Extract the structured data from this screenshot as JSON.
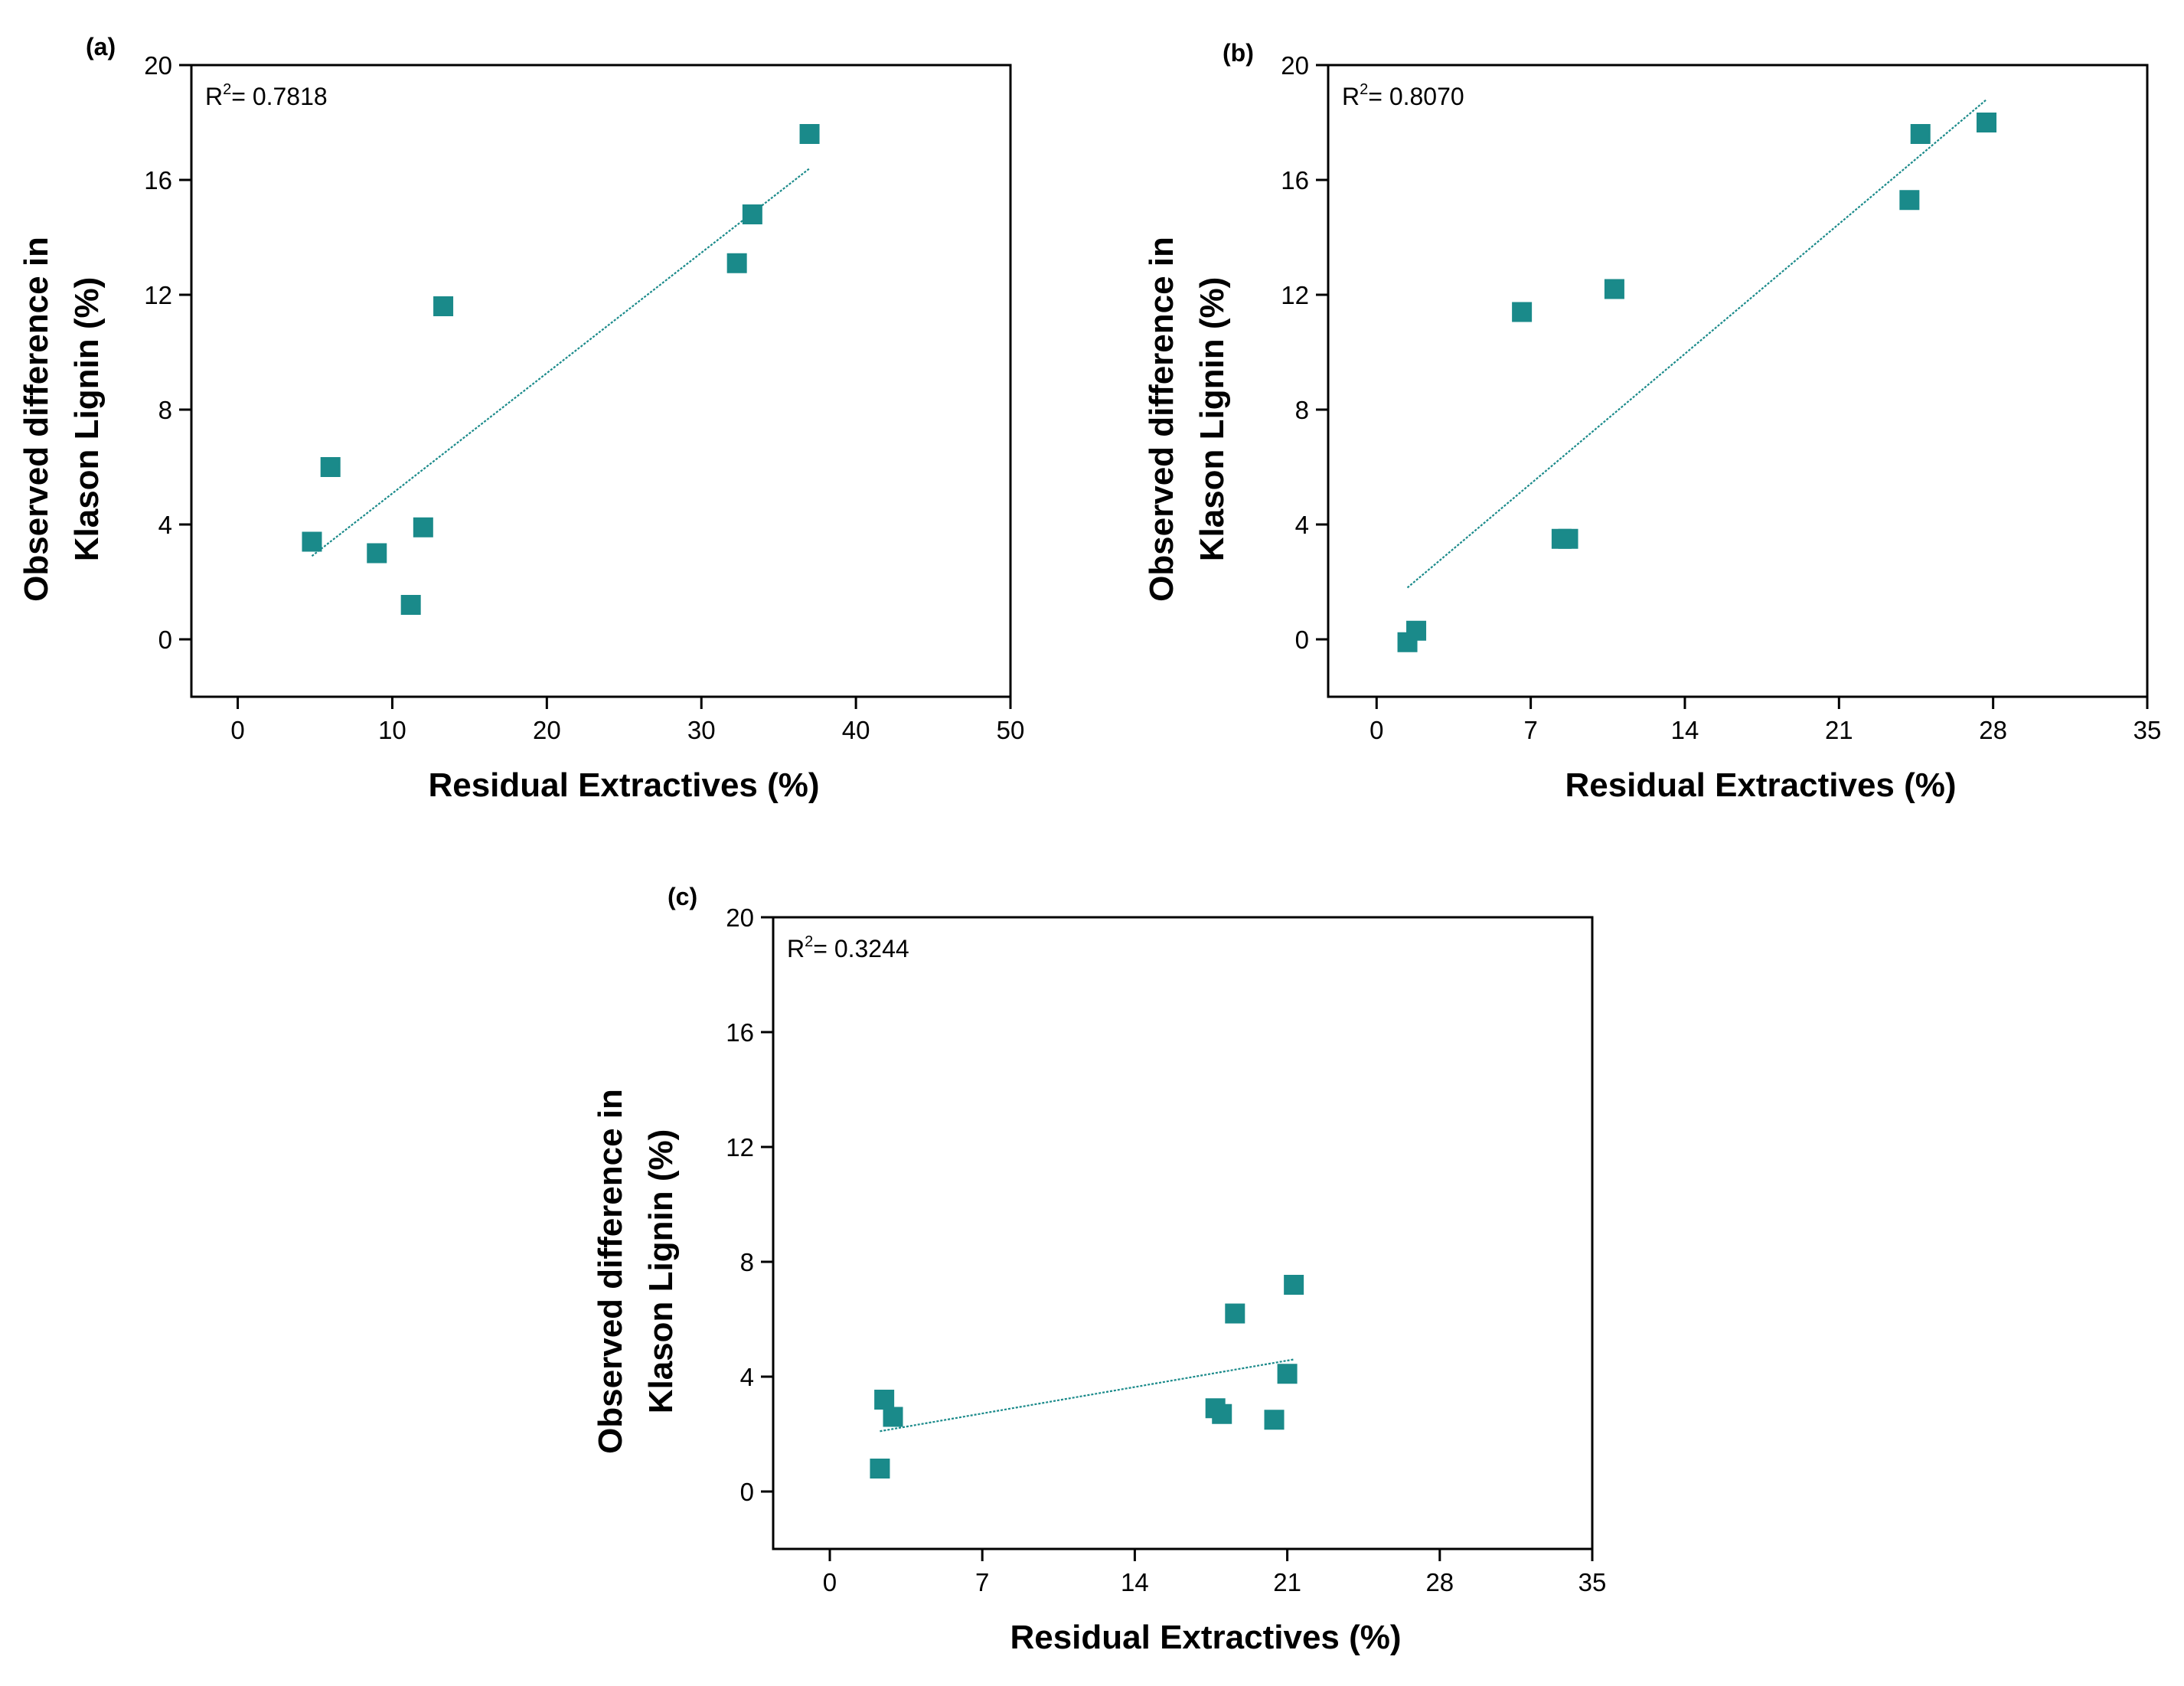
{
  "colors": {
    "marker": "#1a8a8a",
    "fit": "#1a8a8a",
    "axis": "#000000"
  },
  "chart_data": [
    {
      "type": "scatter",
      "panel_label": "(a)",
      "r2": {
        "prefix": "R",
        "sup": "2",
        "value": "= 0.7818"
      },
      "xlabel": "Residual Extractives (%)",
      "ylabel_line1": "Observed difference in",
      "ylabel_line2": "Klason Lignin (%)",
      "xlim": [
        -3,
        50
      ],
      "ylim": [
        -2,
        20
      ],
      "xticks": [
        0,
        10,
        20,
        30,
        40,
        50
      ],
      "xtick_labels": [
        "0",
        "10",
        "20",
        "30",
        "40",
        "50"
      ],
      "yticks": [
        0,
        4,
        8,
        12,
        16,
        20
      ],
      "ytick_labels": [
        "0",
        "4",
        "8",
        "12",
        "16",
        "20"
      ],
      "points": [
        [
          4.8,
          3.4
        ],
        [
          6.0,
          6.0
        ],
        [
          9.0,
          3.0
        ],
        [
          11.2,
          1.2
        ],
        [
          12.0,
          3.9
        ],
        [
          13.3,
          11.6
        ],
        [
          32.3,
          13.1
        ],
        [
          33.3,
          14.8
        ],
        [
          37.0,
          17.6
        ]
      ],
      "fit": {
        "x": [
          4.8,
          37.0
        ],
        "y": [
          2.9,
          16.4
        ]
      }
    },
    {
      "type": "scatter",
      "panel_label": "(b)",
      "r2": {
        "prefix": "R",
        "sup": "2",
        "value": "= 0.8070"
      },
      "xlabel": "Residual Extractives (%)",
      "ylabel_line1": "Observed difference in",
      "ylabel_line2": "Klason Lignin (%)",
      "xlim": [
        -2.2,
        35
      ],
      "ylim": [
        -2,
        20
      ],
      "xticks": [
        0,
        7,
        14,
        21,
        28,
        35
      ],
      "xtick_labels": [
        "0",
        "7",
        "14",
        "21",
        "28",
        "35"
      ],
      "yticks": [
        0,
        4,
        8,
        12,
        16,
        20
      ],
      "ytick_labels": [
        "0",
        "4",
        "8",
        "12",
        "16",
        "20"
      ],
      "points": [
        [
          1.4,
          -0.1
        ],
        [
          1.8,
          0.3
        ],
        [
          6.6,
          11.4
        ],
        [
          8.4,
          3.5
        ],
        [
          8.7,
          3.5
        ],
        [
          10.8,
          12.2
        ],
        [
          24.2,
          15.3
        ],
        [
          24.7,
          17.6
        ],
        [
          27.7,
          18.0
        ]
      ],
      "fit": {
        "x": [
          1.4,
          27.7
        ],
        "y": [
          1.8,
          18.8
        ]
      }
    },
    {
      "type": "scatter",
      "panel_label": "(c)",
      "r2": {
        "prefix": "R",
        "sup": "2",
        "value": "= 0.3244"
      },
      "xlabel": "Residual Extractives (%)",
      "ylabel_line1": "Observed difference in",
      "ylabel_line2": "Klason Lignin (%)",
      "xlim": [
        -2.6,
        35
      ],
      "ylim": [
        -2,
        20
      ],
      "xticks": [
        0,
        7,
        14,
        21,
        28,
        35
      ],
      "xtick_labels": [
        "0",
        "7",
        "14",
        "21",
        "28",
        "35"
      ],
      "yticks": [
        0,
        4,
        8,
        12,
        16,
        20
      ],
      "ytick_labels": [
        "0",
        "4",
        "8",
        "12",
        "16",
        "20"
      ],
      "points": [
        [
          2.3,
          0.8
        ],
        [
          2.5,
          3.2
        ],
        [
          2.9,
          2.6
        ],
        [
          17.7,
          2.9
        ],
        [
          18.0,
          2.7
        ],
        [
          18.6,
          6.2
        ],
        [
          20.4,
          2.5
        ],
        [
          21.0,
          4.1
        ],
        [
          21.3,
          7.2
        ]
      ],
      "fit": {
        "x": [
          2.3,
          21.3
        ],
        "y": [
          2.1,
          4.6
        ]
      }
    }
  ]
}
